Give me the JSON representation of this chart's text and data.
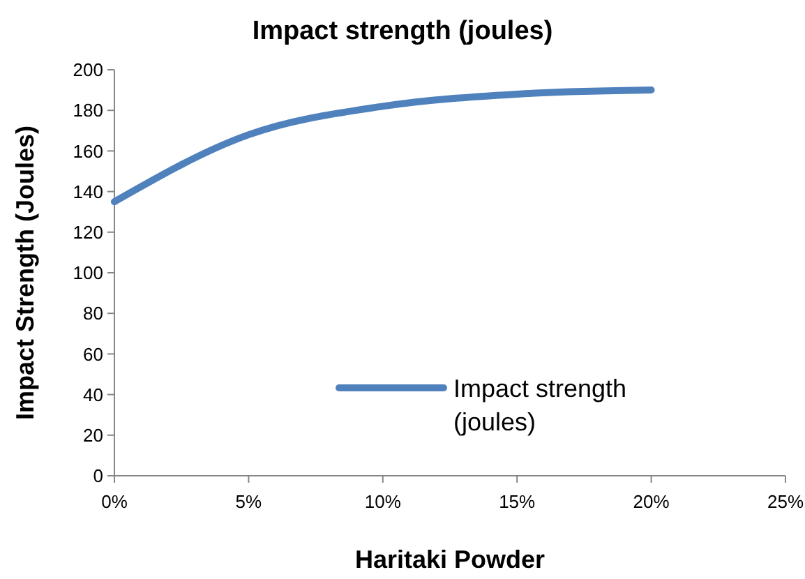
{
  "chart_data": {
    "type": "line",
    "title": "Impact strength (joules)",
    "xlabel": "Haritaki Powder",
    "ylabel": "Impact Strength (Joules)",
    "x": [
      0,
      5,
      10,
      15,
      20
    ],
    "series": [
      {
        "name": "Impact strength (joules)",
        "color": "#4f81bd",
        "values": [
          135,
          168,
          182,
          188,
          190
        ]
      }
    ],
    "xlim": [
      0,
      25
    ],
    "xticks": [
      {
        "value": 0,
        "label": "0%"
      },
      {
        "value": 5,
        "label": "5%"
      },
      {
        "value": 10,
        "label": "10%"
      },
      {
        "value": 15,
        "label": "15%"
      },
      {
        "value": 20,
        "label": "20%"
      },
      {
        "value": 25,
        "label": "25%"
      }
    ],
    "ylim": [
      0,
      200
    ],
    "yticks": [
      0,
      20,
      40,
      60,
      80,
      100,
      120,
      140,
      160,
      180,
      200
    ],
    "grid": false,
    "legend": "bottom right",
    "marker": "none",
    "line_style": "solid"
  }
}
